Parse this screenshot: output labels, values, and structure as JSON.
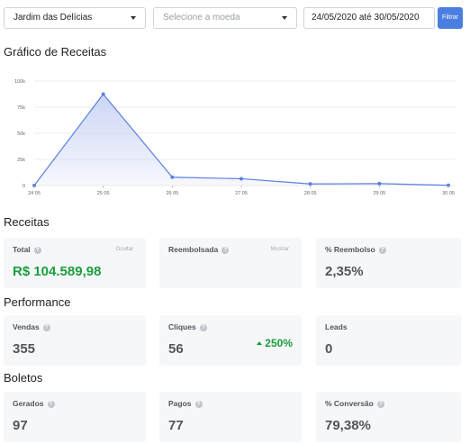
{
  "filters": {
    "store": "Jardim das Delícias",
    "currency_placeholder": "Selecione a moeda",
    "date_range": "24/05/2020 até 30/05/2020",
    "filter_button": "Filtrar"
  },
  "chart": {
    "title": "Gráfico de Receitas"
  },
  "chart_data": {
    "type": "area",
    "categories": [
      "24 05",
      "25 05",
      "26 05",
      "27 05",
      "28 05",
      "29 05",
      "30 05"
    ],
    "values": [
      0,
      87500,
      8000,
      6500,
      1500,
      1800,
      200
    ],
    "yticks": [
      "0",
      "25k",
      "50k",
      "75k",
      "100k"
    ],
    "ylim": [
      0,
      100000
    ],
    "grid": true,
    "line_color": "#5b7fe0",
    "fill_color": "#c9d3f5"
  },
  "receitas": {
    "title": "Receitas",
    "total_label": "Total",
    "total_action": "Ocultar",
    "total_value": "R$ 104.589,98",
    "reembolsada_label": "Reembolsada",
    "reembolsada_action": "Mostrar",
    "reembolso_pct_label": "% Reembolso",
    "reembolso_pct_value": "2,35%"
  },
  "performance": {
    "title": "Performance",
    "vendas_label": "Vendas",
    "vendas_value": "355",
    "cliques_label": "Cliques",
    "cliques_value": "56",
    "cliques_delta": "250%",
    "leads_label": "Leads",
    "leads_value": "0"
  },
  "boletos": {
    "title": "Boletos",
    "gerados_label": "Gerados",
    "gerados_value": "97",
    "pagos_label": "Pagos",
    "pagos_value": "77",
    "conversao_label": "% Conversão",
    "conversao_value": "79,38%"
  },
  "help_glyph": "?"
}
